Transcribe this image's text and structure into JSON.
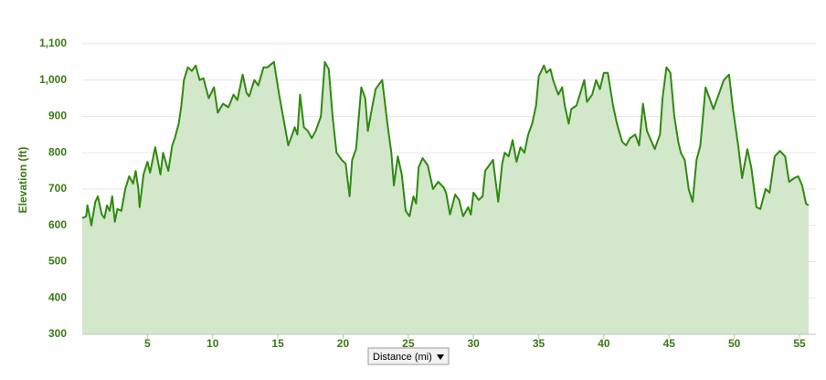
{
  "chart_data": {
    "type": "area",
    "y_axis_label": "Elevation (ft)",
    "x_axis_label": "Distance (mi)",
    "color": "#2f8a0f",
    "fill": "#d3e7cb",
    "grid": true,
    "xlim": [
      0,
      55.7
    ],
    "xticks": [
      5,
      10,
      15,
      20,
      25,
      30,
      35,
      40,
      45,
      50,
      55
    ],
    "ylim": [
      300,
      1150
    ],
    "yticks": [
      300,
      400,
      500,
      600,
      700,
      800,
      900,
      {
        "value": 1000,
        "label": "1,000"
      },
      {
        "value": 1100,
        "label": "1,100"
      }
    ],
    "x": [
      0,
      0.3,
      0.4,
      0.6,
      0.7,
      1.0,
      1.2,
      1.5,
      1.7,
      1.9,
      2.1,
      2.3,
      2.5,
      2.7,
      3.0,
      3.3,
      3.6,
      3.9,
      4.1,
      4.3,
      4.4,
      4.7,
      5.0,
      5.2,
      5.6,
      6.0,
      6.2,
      6.6,
      6.9,
      7.1,
      7.4,
      7.6,
      7.8,
      8.1,
      8.4,
      8.7,
      9.0,
      9.3,
      9.7,
      10.1,
      10.4,
      10.8,
      11.2,
      11.6,
      11.9,
      12.3,
      12.6,
      12.8,
      13.2,
      13.5,
      13.9,
      14.2,
      14.7,
      15.1,
      15.4,
      15.8,
      16.1,
      16.3,
      16.5,
      16.7,
      17.0,
      17.3,
      17.6,
      17.9,
      18.3,
      18.6,
      18.9,
      19.2,
      19.5,
      19.9,
      20.2,
      20.5,
      20.7,
      21.0,
      21.4,
      21.7,
      21.9,
      22.2,
      22.5,
      22.8,
      23.0,
      23.4,
      23.7,
      23.9,
      24.2,
      24.5,
      24.8,
      25.1,
      25.4,
      25.6,
      25.8,
      26.1,
      26.5,
      26.9,
      27.3,
      27.7,
      27.9,
      28.2,
      28.6,
      28.9,
      29.2,
      29.6,
      29.8,
      30.0,
      30.4,
      30.7,
      30.9,
      31.2,
      31.5,
      31.7,
      31.9,
      32.2,
      32.4,
      32.7,
      33.0,
      33.3,
      33.6,
      33.9,
      34.2,
      34.5,
      34.8,
      35.0,
      35.4,
      35.6,
      35.9,
      36.1,
      36.5,
      36.8,
      37.0,
      37.3,
      37.5,
      37.9,
      38.2,
      38.5,
      38.7,
      39.1,
      39.4,
      39.7,
      40.0,
      40.3,
      40.7,
      41.0,
      41.4,
      41.7,
      42.0,
      42.4,
      42.7,
      43.0,
      43.3,
      43.6,
      43.9,
      44.3,
      44.5,
      44.8,
      45.1,
      45.4,
      45.7,
      45.9,
      46.2,
      46.5,
      46.8,
      47.1,
      47.4,
      47.8,
      48.1,
      48.4,
      48.8,
      49.2,
      49.6,
      49.9,
      50.3,
      50.6,
      51.0,
      51.3,
      51.7,
      52.0,
      52.4,
      52.7,
      53.1,
      53.5,
      53.9,
      54.2,
      54.6,
      54.9,
      55.2,
      55.5,
      55.7
    ],
    "y": [
      620,
      625,
      655,
      620,
      600,
      665,
      680,
      630,
      620,
      655,
      640,
      680,
      610,
      645,
      640,
      700,
      735,
      715,
      750,
      700,
      650,
      740,
      775,
      745,
      815,
      740,
      800,
      750,
      820,
      840,
      880,
      930,
      1000,
      1035,
      1025,
      1040,
      1000,
      1005,
      950,
      980,
      910,
      935,
      925,
      960,
      945,
      1015,
      965,
      955,
      1000,
      985,
      1035,
      1035,
      1050,
      960,
      900,
      820,
      850,
      870,
      850,
      960,
      870,
      860,
      840,
      860,
      900,
      1050,
      1030,
      900,
      800,
      780,
      770,
      680,
      780,
      810,
      980,
      950,
      860,
      920,
      975,
      990,
      1000,
      880,
      800,
      710,
      790,
      740,
      640,
      625,
      680,
      660,
      760,
      785,
      765,
      700,
      720,
      705,
      690,
      630,
      685,
      670,
      625,
      650,
      630,
      690,
      670,
      680,
      750,
      765,
      780,
      720,
      665,
      770,
      800,
      790,
      835,
      775,
      815,
      800,
      850,
      880,
      930,
      1010,
      1040,
      1020,
      1030,
      1000,
      960,
      980,
      930,
      880,
      920,
      930,
      965,
      1000,
      940,
      960,
      1000,
      975,
      1020,
      1020,
      930,
      880,
      830,
      820,
      840,
      850,
      820,
      935,
      860,
      835,
      810,
      850,
      950,
      1035,
      1020,
      900,
      830,
      800,
      780,
      700,
      665,
      780,
      820,
      980,
      950,
      920,
      960,
      1000,
      1015,
      920,
      820,
      730,
      810,
      760,
      650,
      645,
      700,
      690,
      790,
      805,
      790,
      720,
      730,
      735,
      710,
      660,
      655
    ]
  }
}
